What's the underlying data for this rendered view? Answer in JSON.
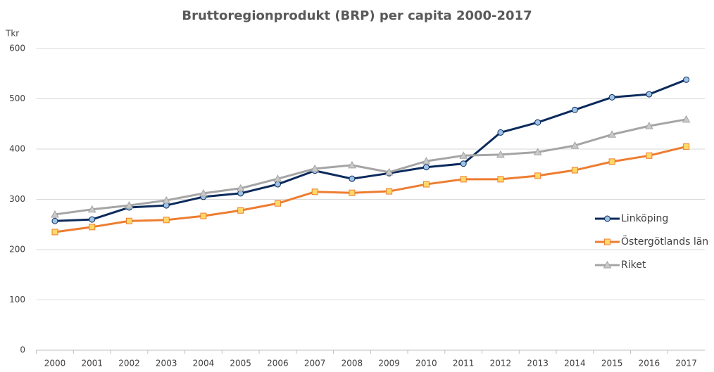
{
  "chart_data": {
    "type": "line",
    "title": "Bruttoregionprodukt (BRP) per capita 2000-2017",
    "y_label": "Tkr",
    "categories": [
      "2000",
      "2001",
      "2002",
      "2003",
      "2004",
      "2005",
      "2006",
      "2007",
      "2008",
      "2009",
      "2010",
      "2011",
      "2012",
      "2013",
      "2014",
      "2015",
      "2016",
      "2017"
    ],
    "series": [
      {
        "name": "Linköping",
        "color": "#0b2a5c",
        "marker": "circle",
        "marker_color": "#9dc3e6",
        "values": [
          257,
          260,
          284,
          288,
          305,
          312,
          330,
          357,
          341,
          352,
          364,
          371,
          433,
          453,
          478,
          503,
          509,
          538
        ]
      },
      {
        "name": "Östergötlands län",
        "color": "#ed7d31",
        "marker": "square",
        "marker_color": "#ffd966",
        "values": [
          235,
          245,
          257,
          259,
          267,
          278,
          292,
          315,
          313,
          316,
          330,
          340,
          340,
          347,
          358,
          375,
          387,
          405
        ]
      },
      {
        "name": "Riket",
        "color": "#a5a5a5",
        "marker": "triangle",
        "marker_color": "#c9c9c9",
        "values": [
          270,
          280,
          288,
          298,
          312,
          322,
          341,
          361,
          368,
          354,
          376,
          387,
          389,
          394,
          407,
          429,
          446,
          459
        ]
      }
    ],
    "ylim": [
      0,
      600
    ],
    "yticks": [
      0,
      100,
      200,
      300,
      400,
      500,
      600
    ],
    "grid": true,
    "legend": "right"
  }
}
